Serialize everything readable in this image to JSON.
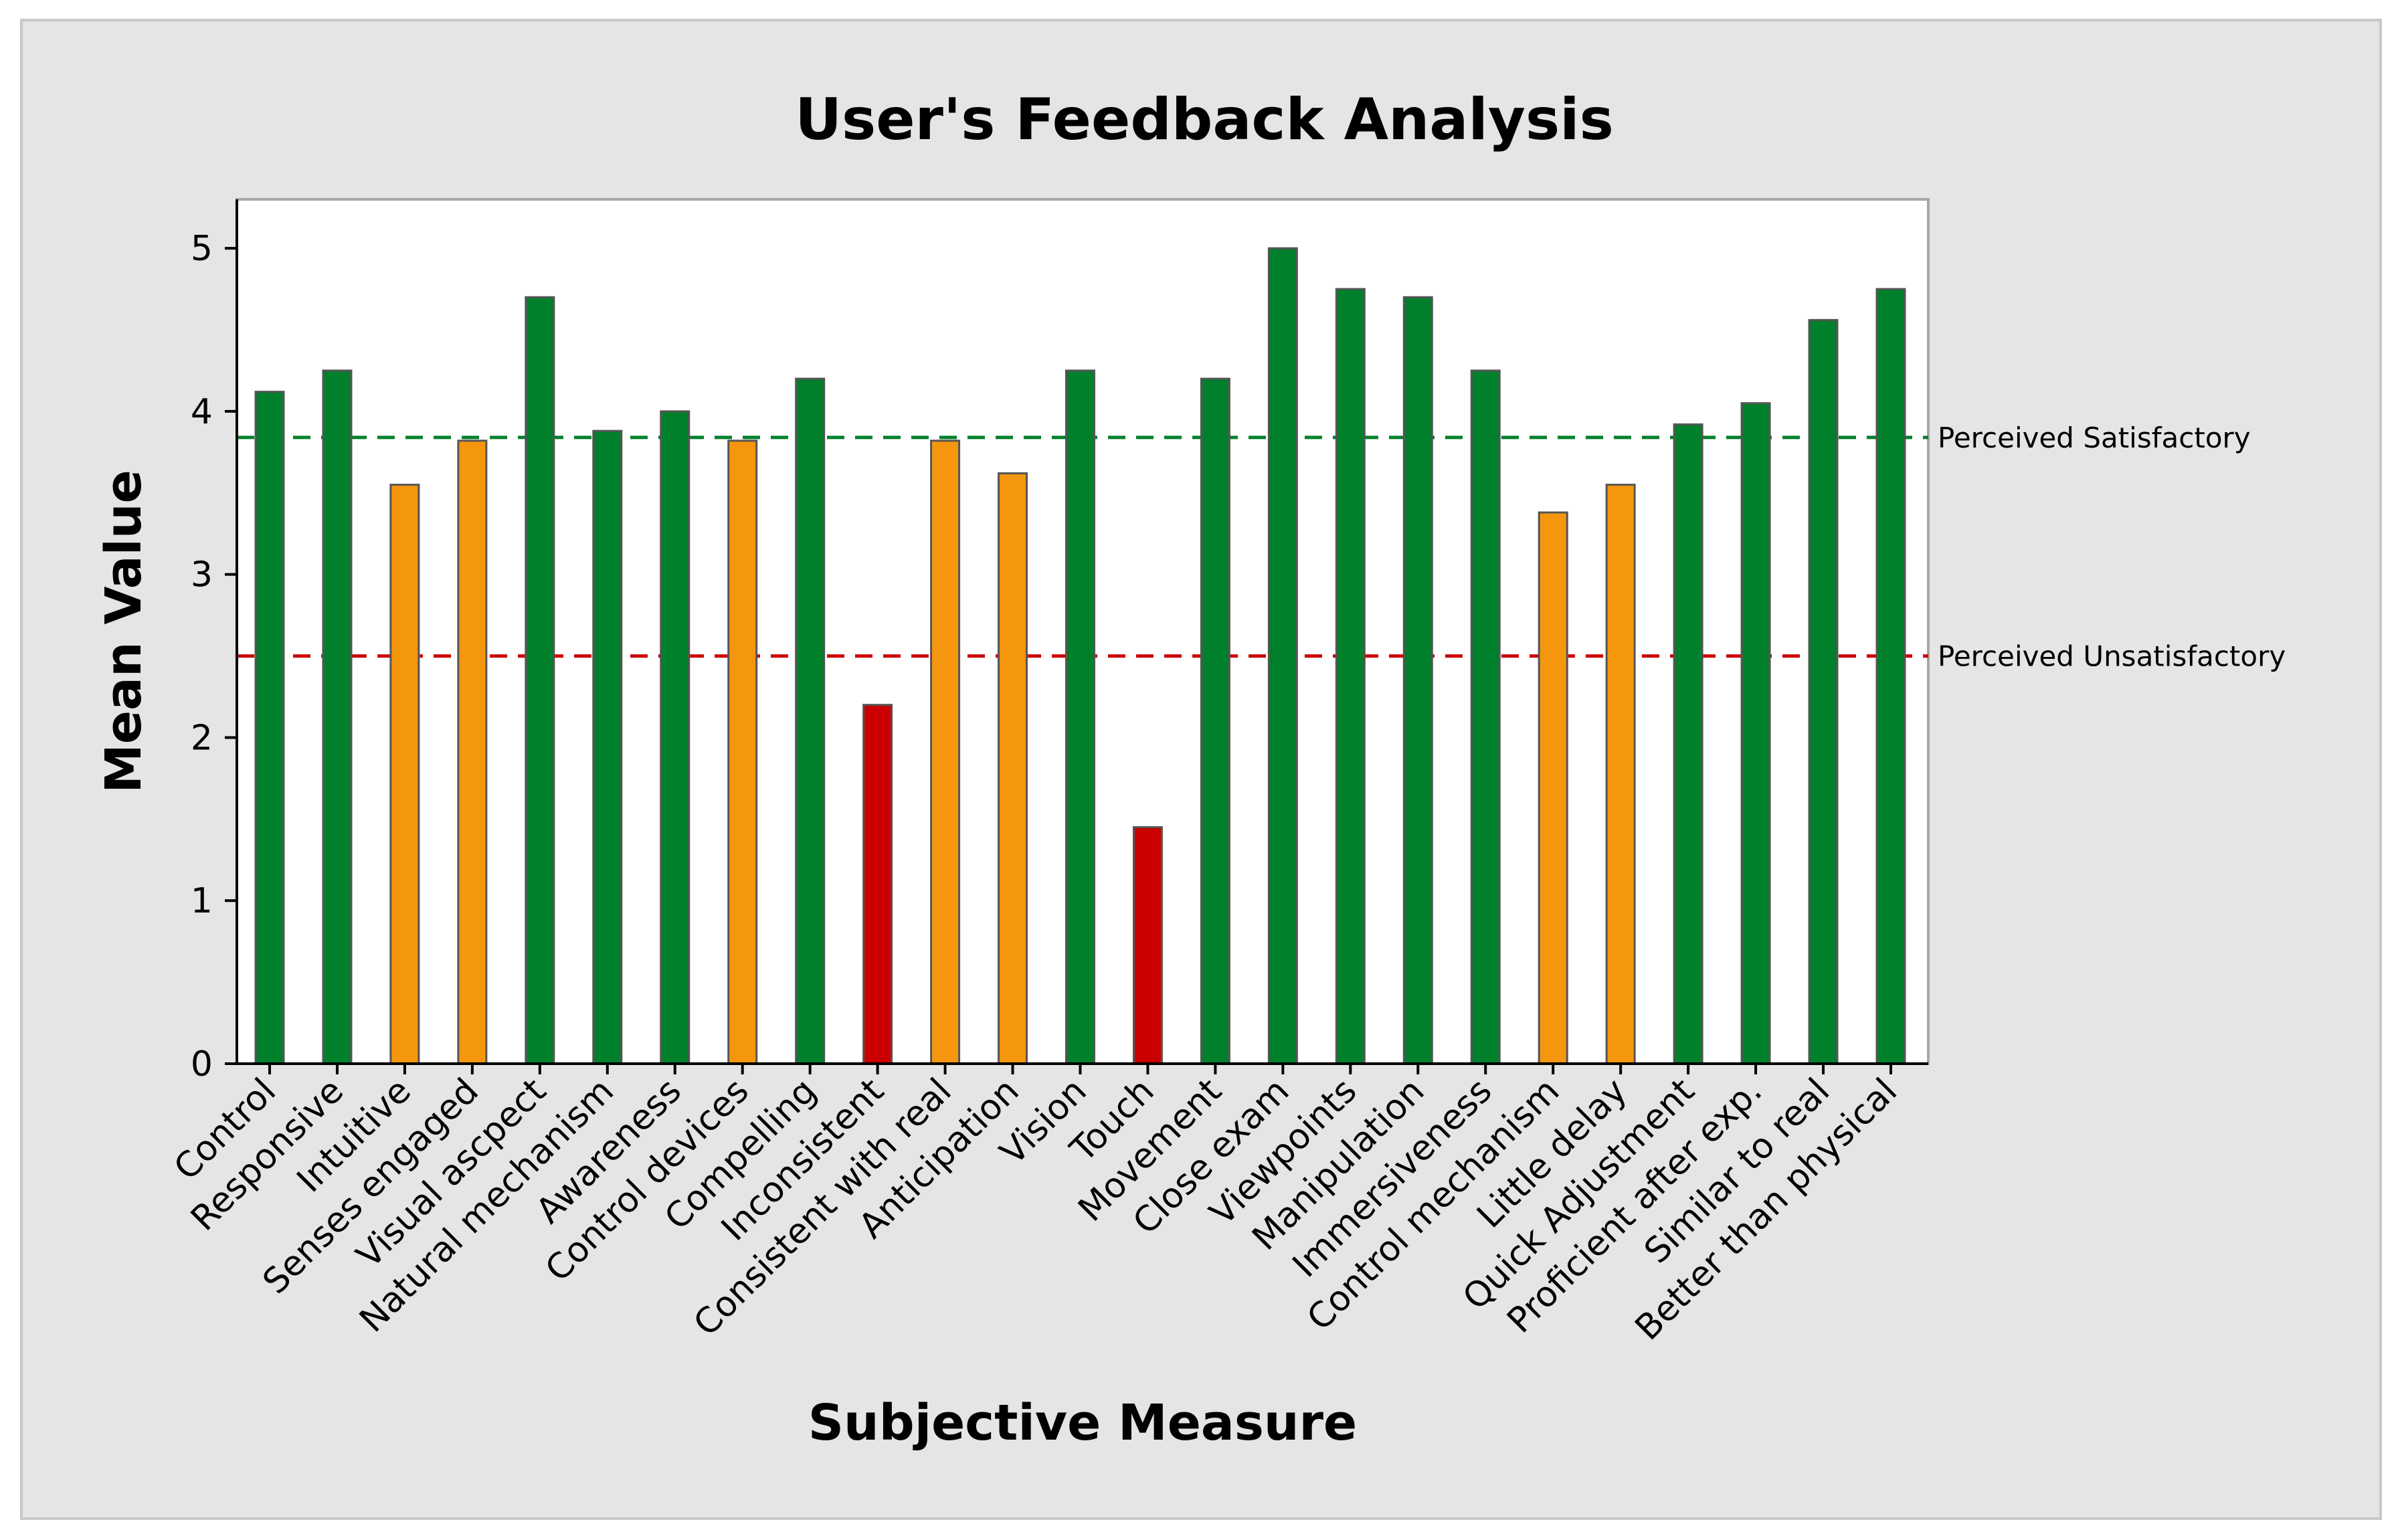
{
  "colors": {
    "outer_bg": "#e5e5e5",
    "plot_bg": "#ffffff",
    "frame": "#a6a6a6",
    "axis": "#000000",
    "satisfactory": "#00802b",
    "moderate": "#f5960f",
    "unsatisfactory": "#cc0000",
    "bar_edge": "#555555"
  },
  "chart_data": {
    "type": "bar",
    "title": "User's Feedback Analysis",
    "xlabel": "Subjective Measure",
    "ylabel": "Mean Value",
    "ylim": [
      0,
      5.3
    ],
    "yticks": [
      {
        "value": 0,
        "label": "0"
      },
      {
        "value": 1,
        "label": "1"
      },
      {
        "value": 2,
        "label": "2"
      },
      {
        "value": 3,
        "label": "3"
      },
      {
        "value": 4,
        "label": "4"
      },
      {
        "value": 5,
        "label": "5"
      }
    ],
    "categories": [
      "Control",
      "Responsive",
      "Intuitive",
      "Senses engaged",
      "Visual ascpect",
      "Natural mechanism",
      "Awareness",
      "Control devices",
      "Compelling",
      "Inconsistent",
      "Consistent with real",
      "Anticipation",
      "Vision",
      "Touch",
      "Movement",
      "Close exam",
      "Viewpoints",
      "Manipulation",
      "Immersiveness",
      "Control mechanism",
      "Little delay",
      "Quick Adjustment",
      "Proficient after exp.",
      "Similar to real",
      "Better than physical"
    ],
    "values": [
      4.12,
      4.25,
      3.55,
      3.82,
      4.7,
      3.88,
      4.0,
      3.82,
      4.2,
      2.2,
      3.82,
      3.62,
      4.25,
      1.45,
      4.2,
      5.0,
      4.75,
      4.7,
      4.25,
      3.38,
      3.55,
      3.92,
      4.05,
      4.56,
      4.75
    ],
    "bar_status": [
      "satisfactory",
      "satisfactory",
      "moderate",
      "moderate",
      "satisfactory",
      "satisfactory",
      "satisfactory",
      "moderate",
      "satisfactory",
      "unsatisfactory",
      "moderate",
      "moderate",
      "satisfactory",
      "unsatisfactory",
      "satisfactory",
      "satisfactory",
      "satisfactory",
      "satisfactory",
      "satisfactory",
      "moderate",
      "moderate",
      "satisfactory",
      "satisfactory",
      "satisfactory",
      "satisfactory"
    ],
    "reference_lines": [
      {
        "value": 3.84,
        "label": "Perceived Satisfactory",
        "color": "#00802b"
      },
      {
        "value": 2.5,
        "label": "Perceived Unsatisfactory",
        "color": "#cc0000"
      }
    ],
    "grid": false,
    "legend": "none"
  }
}
